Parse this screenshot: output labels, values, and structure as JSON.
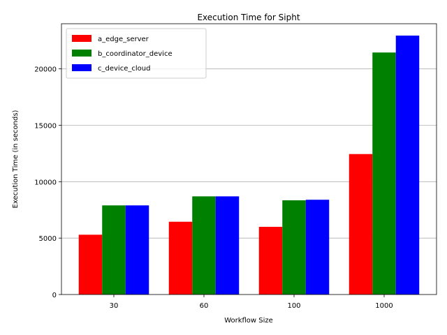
{
  "chart_data": {
    "type": "bar",
    "title": "Execution Time for Sipht",
    "xlabel": "Workflow Size",
    "ylabel": "Execution Time (in seconds)",
    "categories": [
      "30",
      "60",
      "100",
      "1000"
    ],
    "ylim": [
      0,
      24000
    ],
    "yticks": [
      0,
      5000,
      10000,
      15000,
      20000
    ],
    "grid": "horizontal",
    "legend_position": "top-left",
    "series": [
      {
        "name": "a_edge_server",
        "color": "#ff0000",
        "values": [
          5300,
          6450,
          6000,
          12450
        ]
      },
      {
        "name": "b_coordinator_device",
        "color": "#008000",
        "values": [
          7900,
          8700,
          8350,
          21450
        ]
      },
      {
        "name": "c_device_cloud",
        "color": "#0000ff",
        "values": [
          7900,
          8700,
          8400,
          22950
        ]
      }
    ]
  }
}
